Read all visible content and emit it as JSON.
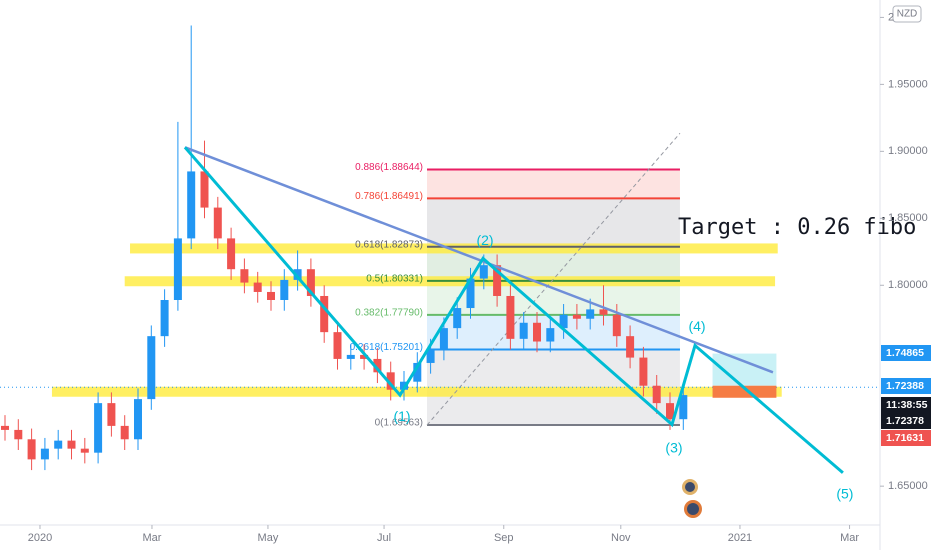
{
  "chart_data": {
    "type": "candlestick",
    "up_color": "#2196f3",
    "down_color": "#ef5350",
    "ylim": [
      1.621,
      2.013
    ],
    "yticks": [
      {
        "value": 1.65,
        "label": "1.65000"
      },
      {
        "value": 1.8,
        "label": "1.80000"
      },
      {
        "value": 1.85,
        "label": "1.85000"
      },
      {
        "value": 1.9,
        "label": "1.90000"
      },
      {
        "value": 1.95,
        "label": "1.95000"
      },
      2
    ],
    "xticks": [
      {
        "value": 2.63,
        "label": "2020"
      },
      {
        "value": 11.05,
        "label": "Mar"
      },
      {
        "value": 19.77,
        "label": "May"
      },
      {
        "value": 28.5,
        "label": "Jul"
      },
      {
        "value": 37.5,
        "label": "Sep"
      },
      {
        "value": 46.3,
        "label": "Nov"
      },
      {
        "value": 55.26,
        "label": "2021"
      },
      {
        "value": 63.5,
        "label": "Mar"
      }
    ],
    "currency": "NZD",
    "open": [
      1.695,
      1.692,
      1.685,
      1.67,
      1.678,
      1.684,
      1.678,
      1.675,
      1.712,
      1.695,
      1.685,
      1.715,
      1.762,
      1.789,
      1.835,
      1.885,
      1.858,
      1.835,
      1.812,
      1.802,
      1.795,
      1.789,
      1.804,
      1.812,
      1.792,
      1.765,
      1.745,
      1.748,
      1.745,
      1.735,
      1.722,
      1.728,
      1.742,
      1.752,
      1.768,
      1.783,
      1.805,
      1.815,
      1.792,
      1.76,
      1.772,
      1.758,
      1.768,
      1.778,
      1.775,
      1.782,
      1.778,
      1.762,
      1.746,
      1.725,
      1.712,
      1.7
    ],
    "high": [
      1.703,
      1.7,
      1.693,
      1.686,
      1.692,
      1.692,
      1.686,
      1.72,
      1.72,
      1.703,
      1.723,
      1.77,
      1.797,
      1.922,
      1.994,
      1.908,
      1.866,
      1.843,
      1.82,
      1.81,
      1.803,
      1.812,
      1.826,
      1.82,
      1.8,
      1.773,
      1.756,
      1.756,
      1.753,
      1.743,
      1.736,
      1.75,
      1.76,
      1.776,
      1.791,
      1.813,
      1.823,
      1.823,
      1.8,
      1.78,
      1.78,
      1.776,
      1.786,
      1.786,
      1.79,
      1.8,
      1.786,
      1.77,
      1.754,
      1.733,
      1.72,
      1.726
    ],
    "low": [
      1.684,
      1.677,
      1.662,
      1.662,
      1.67,
      1.67,
      1.667,
      1.667,
      1.687,
      1.677,
      1.677,
      1.707,
      1.754,
      1.781,
      1.827,
      1.85,
      1.827,
      1.804,
      1.794,
      1.787,
      1.781,
      1.781,
      1.796,
      1.784,
      1.757,
      1.737,
      1.737,
      1.737,
      1.727,
      1.714,
      1.714,
      1.72,
      1.734,
      1.744,
      1.76,
      1.775,
      1.797,
      1.784,
      1.752,
      1.752,
      1.75,
      1.75,
      1.76,
      1.767,
      1.767,
      1.77,
      1.754,
      1.738,
      1.717,
      1.704,
      1.692,
      1.692
    ],
    "close": [
      1.692,
      1.685,
      1.67,
      1.678,
      1.684,
      1.678,
      1.675,
      1.712,
      1.695,
      1.685,
      1.715,
      1.762,
      1.789,
      1.835,
      1.885,
      1.858,
      1.835,
      1.812,
      1.802,
      1.795,
      1.789,
      1.804,
      1.812,
      1.792,
      1.765,
      1.745,
      1.748,
      1.745,
      1.735,
      1.722,
      1.728,
      1.742,
      1.752,
      1.768,
      1.783,
      1.805,
      1.815,
      1.792,
      1.76,
      1.772,
      1.758,
      1.768,
      1.778,
      1.775,
      1.782,
      1.778,
      1.762,
      1.746,
      1.725,
      1.712,
      1.7,
      1.718
    ],
    "fib": {
      "x": [
        31.73,
        50.75
      ],
      "levels": [
        {
          "label": "0.886(1.88644)",
          "value": 1.88644,
          "color": "#e91e63"
        },
        {
          "label": "0.786(1.86491)",
          "value": 1.86491,
          "color": "#f44336"
        },
        {
          "label": "0.618(1.82873)",
          "value": 1.82873,
          "color": "#5d606b"
        },
        {
          "label": "0.5(1.80331)",
          "value": 1.80331,
          "color": "#388e3c"
        },
        {
          "label": "0.382(1.77790)",
          "value": 1.7779,
          "color": "#66bb6a"
        },
        {
          "label": "0.2618(1.75201)",
          "value": 1.75201,
          "color": "#2196f3"
        },
        {
          "label": "0(1.69563)",
          "value": 1.69563,
          "color": "#787b86"
        }
      ]
    },
    "fib_diagonal": {
      "x": [
        31.73,
        50.75
      ],
      "y": [
        1.69563,
        1.9135
      ]
    },
    "zones": [
      {
        "x": [
          9.4,
          58.1
        ],
        "value": 1.8275
      },
      {
        "x": [
          9.0,
          57.9
        ],
        "value": 1.803
      },
      {
        "x": [
          3.53,
          58.4
        ],
        "value": 1.7205
      }
    ],
    "trendline": {
      "x": [
        13.53,
        57.74
      ],
      "y": [
        1.903,
        1.735
      ]
    },
    "wave": {
      "x": [
        13.53,
        29.7,
        35.94,
        50.15,
        51.88,
        63.0
      ],
      "y": [
        1.903,
        1.718,
        1.82,
        1.696,
        1.755,
        1.66
      ],
      "labels": [
        null,
        "(1)",
        "(2)",
        "(3)",
        "(4)",
        "(5)"
      ]
    },
    "target_box": {
      "x": [
        53.2,
        58.0
      ],
      "top": 1.749,
      "mid": 1.725,
      "bottom": 1.716
    },
    "annotation": "Target : 0.26 fibo",
    "price_labels": [
      {
        "label": "1.74865",
        "value": 1.74865,
        "color": "#2196f3"
      },
      {
        "label": "1.72388",
        "value": 1.72388,
        "color": "#2196f3"
      },
      {
        "label": "11:38:55",
        "color": "#131722"
      },
      {
        "label": "1.72378",
        "value": 1.72378,
        "color": "#131722"
      },
      {
        "label": "1.71631",
        "value": 1.71631,
        "color": "#ef5350"
      }
    ]
  }
}
